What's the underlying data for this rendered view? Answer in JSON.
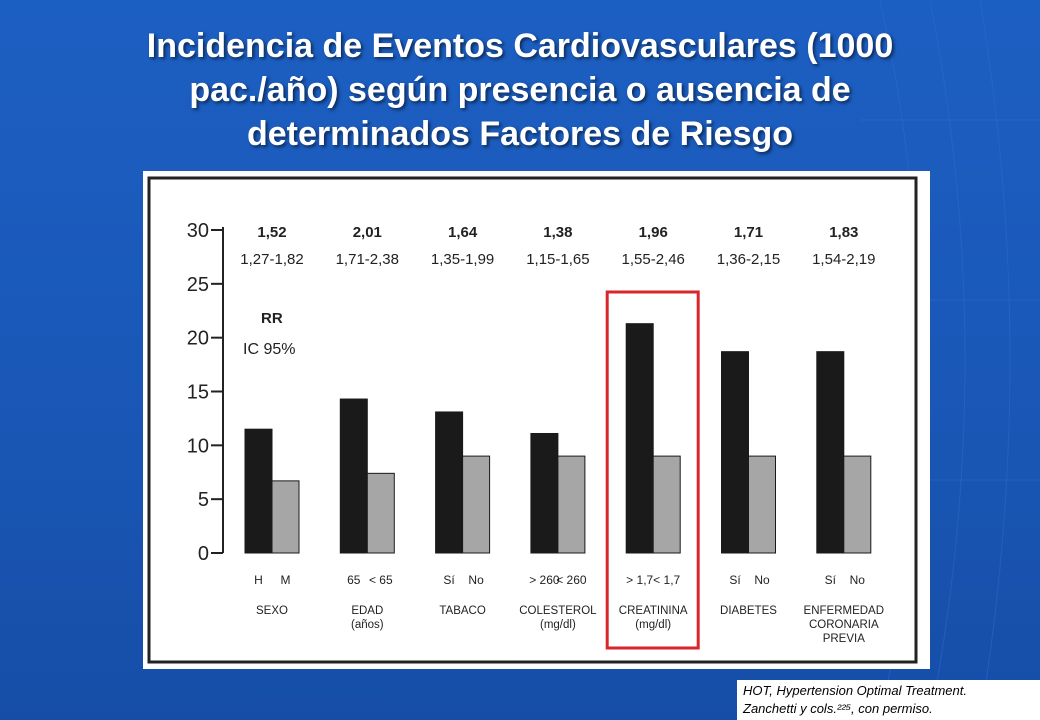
{
  "slide": {
    "title_lines": [
      "Incidencia de Eventos Cardiovasculares (1000",
      "pac./año) según presencia o ausencia de",
      "determinados Factores de Riesgo"
    ],
    "citation_lines": [
      "HOT, Hypertension Optimal Treatment.",
      "Zanchetti y cols.²²⁵, con permiso."
    ],
    "colors": {
      "background": "#1a58b8",
      "present_bar": "#1a1a1a",
      "absent_bar": "#a6a6a6",
      "highlight_box": "#d9262c"
    }
  },
  "chart_data": {
    "type": "bar",
    "title": "",
    "ylim": [
      0,
      30
    ],
    "yticks": [
      0,
      5,
      10,
      15,
      20,
      25,
      30
    ],
    "legend_labels": [
      "RR",
      "IC 95%"
    ],
    "groups": [
      {
        "label": [
          "SEXO"
        ],
        "sub": [
          "H",
          "M"
        ],
        "values": [
          11.5,
          6.7
        ],
        "rr": "1,52",
        "ci": "1,27-1,82"
      },
      {
        "label": [
          "EDAD",
          "(años)"
        ],
        "sub": [
          "65",
          "< 65"
        ],
        "values": [
          14.3,
          7.4
        ],
        "rr": "2,01",
        "ci": "1,71-2,38"
      },
      {
        "label": [
          "TABACO"
        ],
        "sub": [
          "Sí",
          "No"
        ],
        "values": [
          13.1,
          9.0
        ],
        "rr": "1,64",
        "ci": "1,35-1,99"
      },
      {
        "label": [
          "COLESTEROL",
          "(mg/dl)"
        ],
        "sub": [
          "> 260",
          "< 260"
        ],
        "values": [
          11.1,
          9.0
        ],
        "rr": "1,38",
        "ci": "1,15-1,65"
      },
      {
        "label": [
          "CREATININA",
          "(mg/dl)"
        ],
        "sub": [
          "> 1,7",
          "< 1,7"
        ],
        "values": [
          21.3,
          9.0
        ],
        "rr": "1,96",
        "ci": "1,55-2,46"
      },
      {
        "label": [
          "DIABETES"
        ],
        "sub": [
          "Sí",
          "No"
        ],
        "values": [
          18.7,
          9.0
        ],
        "rr": "1,71",
        "ci": "1,36-2,15"
      },
      {
        "label": [
          "ENFERMEDAD",
          "CORONARIA",
          "PREVIA"
        ],
        "sub": [
          "Sí",
          "No"
        ],
        "values": [
          18.7,
          9.0
        ],
        "rr": "1,83",
        "ci": "1,54-2,19"
      }
    ],
    "highlighted_group": 4,
    "grid": false
  }
}
